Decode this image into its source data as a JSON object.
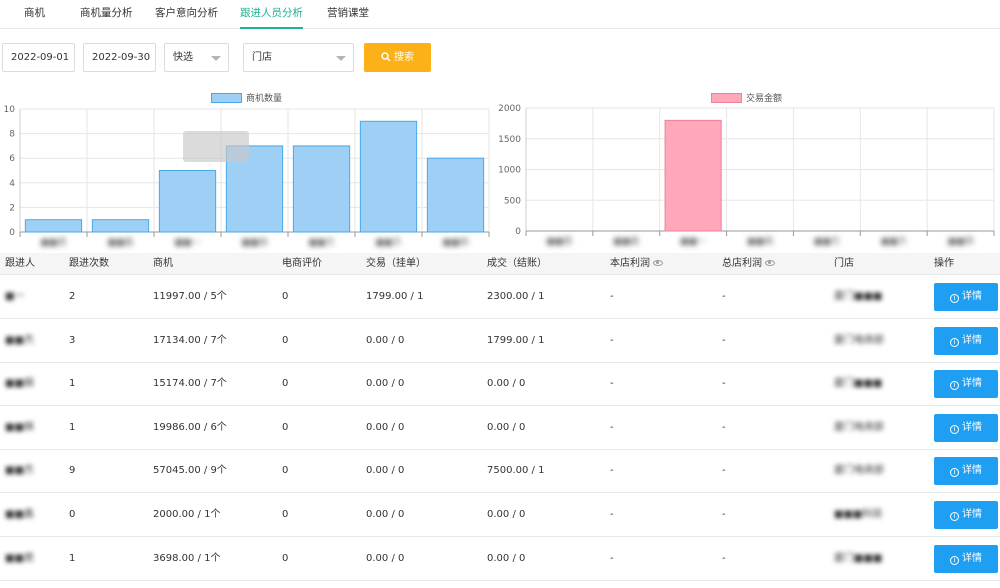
{
  "tabs": [
    {
      "label": "商机"
    },
    {
      "label": "商机量分析"
    },
    {
      "label": "客户意向分析"
    },
    {
      "label": "跟进人员分析",
      "active": true
    },
    {
      "label": "营销课堂"
    }
  ],
  "filters": {
    "start_date": "2022-09-01",
    "end_date": "2022-09-30",
    "quick_select": "快选",
    "store": "门店",
    "search_label": "搜索"
  },
  "chart_data": [
    {
      "type": "bar",
      "legend": "商机数量",
      "color": "#9ecff5",
      "border": "#4aa8e8",
      "categories": [
        "■■君",
        "■■鑫",
        "■■一",
        "■■娟",
        "■■杰",
        "■■杰",
        "■■棋"
      ],
      "values": [
        1,
        1,
        5,
        7,
        7,
        9,
        6
      ],
      "ylim": [
        0,
        10
      ],
      "yticks": [
        "0",
        "2",
        "4",
        "6",
        "8",
        "10"
      ]
    },
    {
      "type": "bar",
      "legend": "交易金额",
      "color": "#ffa8bb",
      "border": "#f0809a",
      "categories": [
        "■■君",
        "■■鑫",
        "■■一",
        "■■娟",
        "■■杰",
        "■■杰",
        "■■棋"
      ],
      "values": [
        0,
        0,
        1799,
        0,
        0,
        0,
        0
      ],
      "ylim": [
        0,
        2000
      ],
      "yticks": [
        "0",
        "500",
        "1000",
        "1500",
        "2000"
      ]
    }
  ],
  "table": {
    "headers": [
      "跟进人",
      "跟进次数",
      "商机",
      "电商评价",
      "交易（挂单）",
      "成交（结账）",
      "本店利润",
      "总店利润",
      "门店",
      "操作"
    ],
    "detail_label": "详情",
    "rows": [
      {
        "name": "■一",
        "count": "2",
        "opps": "11997.00 / 5个",
        "review": "0",
        "trade": "1799.00 / 1",
        "deal": "2300.00 / 1",
        "store_profit": "-",
        "hq_profit": "-",
        "store": "厦门■■■"
      },
      {
        "name": "■■杰",
        "count": "3",
        "opps": "17134.00 / 7个",
        "review": "0",
        "trade": "0.00 / 0",
        "deal": "1799.00 / 1",
        "store_profit": "-",
        "hq_profit": "-",
        "store": "厦门电商部"
      },
      {
        "name": "■■娟",
        "count": "1",
        "opps": "15174.00 / 7个",
        "review": "0",
        "trade": "0.00 / 0",
        "deal": "0.00 / 0",
        "store_profit": "-",
        "hq_profit": "-",
        "store": "厦门■■■"
      },
      {
        "name": "■■棋",
        "count": "1",
        "opps": "19986.00 / 6个",
        "review": "0",
        "trade": "0.00 / 0",
        "deal": "0.00 / 0",
        "store_profit": "-",
        "hq_profit": "-",
        "store": "厦门电商部"
      },
      {
        "name": "■■杰",
        "count": "9",
        "opps": "57045.00 / 9个",
        "review": "0",
        "trade": "0.00 / 0",
        "deal": "7500.00 / 1",
        "store_profit": "-",
        "hq_profit": "-",
        "store": "厦门电商部"
      },
      {
        "name": "■■鑫",
        "count": "0",
        "opps": "2000.00 / 1个",
        "review": "0",
        "trade": "0.00 / 0",
        "deal": "0.00 / 0",
        "store_profit": "-",
        "hq_profit": "-",
        "store": "■■■科技"
      },
      {
        "name": "■■君",
        "count": "1",
        "opps": "3698.00 / 1个",
        "review": "0",
        "trade": "0.00 / 0",
        "deal": "0.00 / 0",
        "store_profit": "-",
        "hq_profit": "-",
        "store": "厦门■■■"
      }
    ]
  }
}
